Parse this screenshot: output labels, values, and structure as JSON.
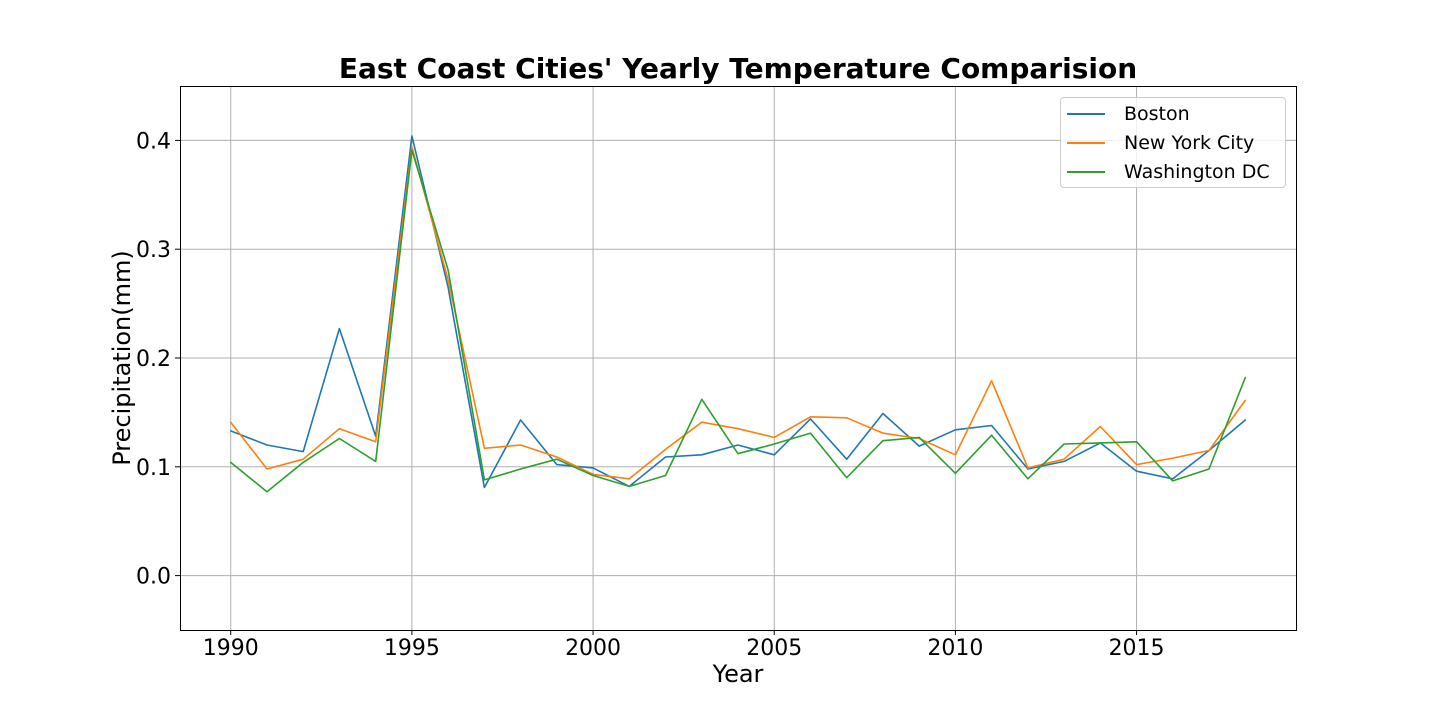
{
  "chart_data": {
    "type": "line",
    "title": "East Coast Cities' Yearly Temperature Comparision",
    "xlabel": "Year",
    "ylabel": "Precipitation(mm)",
    "xlim": [
      1988.6,
      2019.4
    ],
    "ylim": [
      -0.05,
      0.45
    ],
    "xticks": [
      1990,
      1995,
      2000,
      2005,
      2010,
      2015
    ],
    "yticks": [
      0.0,
      0.1,
      0.2,
      0.3,
      0.4
    ],
    "xtick_labels": [
      "1990",
      "1995",
      "2000",
      "2005",
      "2010",
      "2015"
    ],
    "ytick_labels": [
      "0.0",
      "0.1",
      "0.2",
      "0.3",
      "0.4"
    ],
    "grid": true,
    "legend_position": "top-right",
    "x": [
      1990,
      1991,
      1992,
      1993,
      1994,
      1995,
      1996,
      1997,
      1998,
      1999,
      2000,
      2001,
      2002,
      2003,
      2004,
      2005,
      2006,
      2007,
      2008,
      2009,
      2010,
      2011,
      2012,
      2013,
      2014,
      2015,
      2016,
      2017,
      2018
    ],
    "series": [
      {
        "name": "Boston",
        "color": "#1f77b4",
        "values": [
          0.133,
          0.12,
          0.114,
          0.227,
          0.128,
          0.404,
          0.265,
          0.081,
          0.143,
          0.102,
          0.099,
          0.082,
          0.109,
          0.111,
          0.12,
          0.111,
          0.144,
          0.107,
          0.149,
          0.119,
          0.134,
          0.138,
          0.098,
          0.105,
          0.122,
          0.096,
          0.089,
          0.115,
          0.143
        ]
      },
      {
        "name": "New York City",
        "color": "#ff7f0e",
        "values": [
          0.141,
          0.098,
          0.107,
          0.135,
          0.123,
          0.394,
          0.272,
          0.117,
          0.12,
          0.109,
          0.093,
          0.089,
          0.116,
          0.141,
          0.135,
          0.127,
          0.146,
          0.145,
          0.131,
          0.126,
          0.111,
          0.179,
          0.099,
          0.107,
          0.137,
          0.102,
          0.108,
          0.115,
          0.161
        ]
      },
      {
        "name": "Washington DC",
        "color": "#2ca02c",
        "values": [
          0.104,
          0.077,
          0.104,
          0.126,
          0.105,
          0.391,
          0.281,
          0.088,
          0.098,
          0.107,
          0.092,
          0.082,
          0.092,
          0.162,
          0.112,
          0.121,
          0.131,
          0.09,
          0.124,
          0.127,
          0.094,
          0.129,
          0.089,
          0.121,
          0.122,
          0.123,
          0.087,
          0.098,
          0.182
        ]
      }
    ]
  }
}
